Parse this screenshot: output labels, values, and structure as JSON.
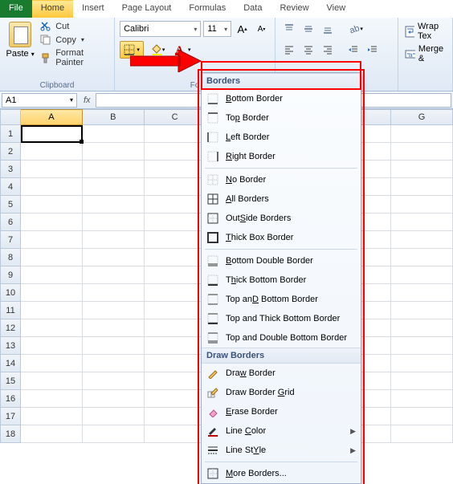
{
  "tabs": {
    "file": "File",
    "home": "Home",
    "insert": "Insert",
    "pagelayout": "Page Layout",
    "formulas": "Formulas",
    "data": "Data",
    "review": "Review",
    "view": "View"
  },
  "clipboard": {
    "paste": "Paste",
    "cut": "Cut",
    "copy": "Copy",
    "arrow": "▾",
    "fmt": "Format Painter",
    "label": "Clipboard"
  },
  "font": {
    "name": "Calibri",
    "size": "11",
    "label": "Fo",
    "fill_letter": "",
    "color_letter": "A"
  },
  "align": {
    "label": "gnment"
  },
  "merge": {
    "wrap": "Wrap Tex",
    "merge": "Merge &"
  },
  "namebox": {
    "ref": "A1",
    "fx": "fx"
  },
  "cols": [
    "A",
    "B",
    "C",
    "D",
    "",
    "",
    "G"
  ],
  "rows": [
    "1",
    "2",
    "3",
    "4",
    "5",
    "6",
    "7",
    "8",
    "9",
    "10",
    "11",
    "12",
    "13",
    "14",
    "15",
    "16",
    "17",
    "18"
  ],
  "dd": {
    "sec1": "Borders",
    "bottom": "Bottom Border",
    "top": "Top Border",
    "left": "Left Border",
    "right": "Right Border",
    "none": "No Border",
    "all": "All Borders",
    "outside": "Outside Borders",
    "thickbox": "Thick Box Border",
    "botdbl": "Bottom Double Border",
    "thickbot": "Thick Bottom Border",
    "topbot": "Top and Bottom Border",
    "topthick": "Top and Thick Bottom Border",
    "topdbl": "Top and Double Bottom Border",
    "sec2": "Draw Borders",
    "draw": "Draw Border",
    "drawgrid": "Draw Border Grid",
    "erase": "Erase Border",
    "linecolor": "Line Color",
    "linestyle": "Line Style",
    "more": "More Borders...",
    "u": {
      "b": "B",
      "t": "T",
      "l": "L",
      "r": "R",
      "n": "N",
      "a": "A",
      "s": "S",
      "d": "D",
      "g": "G",
      "e": "E",
      "c": "C",
      "y": "Y",
      "m": "M"
    }
  },
  "colors": {
    "accent": "#ffd34e",
    "file": "#197b30",
    "ribbon_bg": "#e7eef7",
    "highlight": "#ff0000"
  }
}
